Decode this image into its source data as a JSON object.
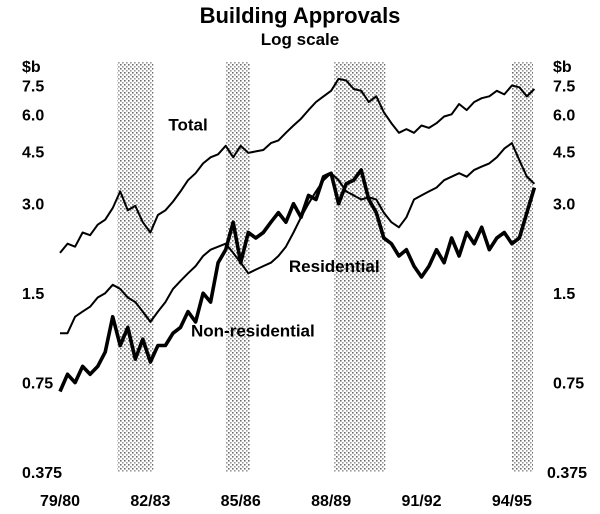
{
  "chart_data": {
    "type": "line",
    "title": "Building Approvals",
    "subtitle": "Log scale",
    "y_unit_left": "$b",
    "y_unit_right": "$b",
    "y_scale": "log",
    "ylim": [
      0.375,
      9.0
    ],
    "y_ticks": [
      {
        "value": 0.375,
        "label": "0.375"
      },
      {
        "value": 0.75,
        "label": "0.75"
      },
      {
        "value": 1.5,
        "label": "1.5"
      },
      {
        "value": 3.0,
        "label": "3.0"
      },
      {
        "value": 4.5,
        "label": "4.5"
      },
      {
        "value": 6.0,
        "label": "6.0"
      },
      {
        "value": 7.5,
        "label": "7.5"
      }
    ],
    "xlim": [
      1979.5,
      1995.7
    ],
    "x_ticks": [
      {
        "value": 1979.5,
        "label": "79/80"
      },
      {
        "value": 1982.5,
        "label": "82/83"
      },
      {
        "value": 1985.5,
        "label": "85/86"
      },
      {
        "value": 1988.5,
        "label": "88/89"
      },
      {
        "value": 1991.5,
        "label": "91/92"
      },
      {
        "value": 1994.5,
        "label": "94/95"
      }
    ],
    "shaded_periods": [
      [
        1981.4,
        1982.6
      ],
      [
        1985.0,
        1985.8
      ],
      [
        1988.6,
        1990.3
      ],
      [
        1994.5,
        1995.2
      ]
    ],
    "series": [
      {
        "name": "Total",
        "style": "thin",
        "label_at": [
          1983.1,
          5.3
        ],
        "points": [
          [
            1979.5,
            2.05
          ],
          [
            1979.75,
            2.2
          ],
          [
            1980.0,
            2.15
          ],
          [
            1980.25,
            2.4
          ],
          [
            1980.5,
            2.35
          ],
          [
            1980.75,
            2.55
          ],
          [
            1981.0,
            2.65
          ],
          [
            1981.25,
            2.9
          ],
          [
            1981.5,
            3.3
          ],
          [
            1981.75,
            2.85
          ],
          [
            1982.0,
            2.95
          ],
          [
            1982.25,
            2.6
          ],
          [
            1982.5,
            2.4
          ],
          [
            1982.75,
            2.75
          ],
          [
            1983.0,
            2.85
          ],
          [
            1983.25,
            3.05
          ],
          [
            1983.5,
            3.3
          ],
          [
            1983.75,
            3.6
          ],
          [
            1984.0,
            3.8
          ],
          [
            1984.25,
            4.1
          ],
          [
            1984.5,
            4.3
          ],
          [
            1984.75,
            4.4
          ],
          [
            1985.0,
            4.7
          ],
          [
            1985.25,
            4.3
          ],
          [
            1985.5,
            4.7
          ],
          [
            1985.75,
            4.45
          ],
          [
            1986.0,
            4.5
          ],
          [
            1986.25,
            4.55
          ],
          [
            1986.5,
            4.8
          ],
          [
            1986.75,
            4.9
          ],
          [
            1987.0,
            5.2
          ],
          [
            1987.25,
            5.5
          ],
          [
            1987.5,
            5.8
          ],
          [
            1987.75,
            6.2
          ],
          [
            1988.0,
            6.6
          ],
          [
            1988.25,
            6.9
          ],
          [
            1988.5,
            7.2
          ],
          [
            1988.75,
            7.9
          ],
          [
            1989.0,
            7.8
          ],
          [
            1989.25,
            7.3
          ],
          [
            1989.5,
            7.2
          ],
          [
            1989.75,
            6.6
          ],
          [
            1990.0,
            6.9
          ],
          [
            1990.25,
            6.1
          ],
          [
            1990.5,
            5.6
          ],
          [
            1990.75,
            5.2
          ],
          [
            1991.0,
            5.35
          ],
          [
            1991.25,
            5.2
          ],
          [
            1991.5,
            5.5
          ],
          [
            1991.75,
            5.4
          ],
          [
            1992.0,
            5.6
          ],
          [
            1992.25,
            5.9
          ],
          [
            1992.5,
            6.0
          ],
          [
            1992.75,
            6.5
          ],
          [
            1993.0,
            6.2
          ],
          [
            1993.25,
            6.6
          ],
          [
            1993.5,
            6.8
          ],
          [
            1993.75,
            6.9
          ],
          [
            1994.0,
            7.2
          ],
          [
            1994.25,
            7.0
          ],
          [
            1994.5,
            7.5
          ],
          [
            1994.75,
            7.4
          ],
          [
            1995.0,
            6.9
          ],
          [
            1995.25,
            7.3
          ]
        ]
      },
      {
        "name": "Residential",
        "style": "thin",
        "label_at": [
          1987.1,
          1.77
        ],
        "points": [
          [
            1979.5,
            1.1
          ],
          [
            1979.75,
            1.1
          ],
          [
            1980.0,
            1.25
          ],
          [
            1980.25,
            1.3
          ],
          [
            1980.5,
            1.35
          ],
          [
            1980.75,
            1.45
          ],
          [
            1981.0,
            1.5
          ],
          [
            1981.25,
            1.6
          ],
          [
            1981.5,
            1.55
          ],
          [
            1981.75,
            1.45
          ],
          [
            1982.0,
            1.4
          ],
          [
            1982.25,
            1.3
          ],
          [
            1982.5,
            1.2
          ],
          [
            1982.75,
            1.3
          ],
          [
            1983.0,
            1.4
          ],
          [
            1983.25,
            1.55
          ],
          [
            1983.5,
            1.65
          ],
          [
            1983.75,
            1.75
          ],
          [
            1984.0,
            1.85
          ],
          [
            1984.25,
            2.0
          ],
          [
            1984.5,
            2.1
          ],
          [
            1984.75,
            2.15
          ],
          [
            1985.0,
            2.2
          ],
          [
            1985.25,
            2.05
          ],
          [
            1985.5,
            1.9
          ],
          [
            1985.75,
            1.75
          ],
          [
            1986.0,
            1.8
          ],
          [
            1986.25,
            1.85
          ],
          [
            1986.5,
            1.9
          ],
          [
            1986.75,
            2.0
          ],
          [
            1987.0,
            2.15
          ],
          [
            1987.25,
            2.4
          ],
          [
            1987.5,
            2.7
          ],
          [
            1987.75,
            3.0
          ],
          [
            1988.0,
            3.3
          ],
          [
            1988.25,
            3.6
          ],
          [
            1988.5,
            3.8
          ],
          [
            1988.75,
            3.6
          ],
          [
            1989.0,
            3.3
          ],
          [
            1989.25,
            3.2
          ],
          [
            1989.5,
            3.1
          ],
          [
            1989.75,
            3.15
          ],
          [
            1990.0,
            3.1
          ],
          [
            1990.25,
            2.8
          ],
          [
            1990.5,
            2.6
          ],
          [
            1990.75,
            2.5
          ],
          [
            1991.0,
            2.7
          ],
          [
            1991.25,
            3.1
          ],
          [
            1991.5,
            3.2
          ],
          [
            1991.75,
            3.3
          ],
          [
            1992.0,
            3.4
          ],
          [
            1992.25,
            3.6
          ],
          [
            1992.5,
            3.7
          ],
          [
            1992.75,
            3.8
          ],
          [
            1993.0,
            3.7
          ],
          [
            1993.25,
            3.9
          ],
          [
            1993.5,
            4.0
          ],
          [
            1993.75,
            4.1
          ],
          [
            1994.0,
            4.3
          ],
          [
            1994.25,
            4.6
          ],
          [
            1994.5,
            4.8
          ],
          [
            1994.75,
            4.2
          ],
          [
            1995.0,
            3.7
          ],
          [
            1995.25,
            3.5
          ]
        ]
      },
      {
        "name": "Non-residential",
        "style": "thick",
        "label_at": [
          1983.85,
          1.07
        ],
        "points": [
          [
            1979.5,
            0.7
          ],
          [
            1979.75,
            0.8
          ],
          [
            1980.0,
            0.75
          ],
          [
            1980.25,
            0.85
          ],
          [
            1980.5,
            0.8
          ],
          [
            1980.75,
            0.85
          ],
          [
            1981.0,
            0.95
          ],
          [
            1981.25,
            1.25
          ],
          [
            1981.5,
            1.0
          ],
          [
            1981.75,
            1.15
          ],
          [
            1982.0,
            0.9
          ],
          [
            1982.25,
            1.05
          ],
          [
            1982.5,
            0.88
          ],
          [
            1982.75,
            1.0
          ],
          [
            1983.0,
            1.0
          ],
          [
            1983.25,
            1.1
          ],
          [
            1983.5,
            1.15
          ],
          [
            1983.75,
            1.3
          ],
          [
            1984.0,
            1.2
          ],
          [
            1984.25,
            1.5
          ],
          [
            1984.5,
            1.4
          ],
          [
            1984.75,
            1.9
          ],
          [
            1985.0,
            2.1
          ],
          [
            1985.25,
            2.6
          ],
          [
            1985.5,
            1.9
          ],
          [
            1985.75,
            2.4
          ],
          [
            1986.0,
            2.3
          ],
          [
            1986.25,
            2.4
          ],
          [
            1986.5,
            2.6
          ],
          [
            1986.75,
            2.8
          ],
          [
            1987.0,
            2.6
          ],
          [
            1987.25,
            3.0
          ],
          [
            1987.5,
            2.7
          ],
          [
            1987.75,
            3.2
          ],
          [
            1988.0,
            3.1
          ],
          [
            1988.25,
            3.7
          ],
          [
            1988.5,
            3.8
          ],
          [
            1988.75,
            3.0
          ],
          [
            1989.0,
            3.5
          ],
          [
            1989.25,
            3.6
          ],
          [
            1989.5,
            3.9
          ],
          [
            1989.75,
            3.1
          ],
          [
            1990.0,
            2.8
          ],
          [
            1990.25,
            2.3
          ],
          [
            1990.5,
            2.2
          ],
          [
            1990.75,
            2.0
          ],
          [
            1991.0,
            2.1
          ],
          [
            1991.25,
            1.85
          ],
          [
            1991.5,
            1.7
          ],
          [
            1991.75,
            1.85
          ],
          [
            1992.0,
            2.1
          ],
          [
            1992.25,
            1.9
          ],
          [
            1992.5,
            2.3
          ],
          [
            1992.75,
            2.0
          ],
          [
            1993.0,
            2.4
          ],
          [
            1993.25,
            2.2
          ],
          [
            1993.5,
            2.5
          ],
          [
            1993.75,
            2.1
          ],
          [
            1994.0,
            2.3
          ],
          [
            1994.25,
            2.4
          ],
          [
            1994.5,
            2.2
          ],
          [
            1994.75,
            2.3
          ],
          [
            1995.0,
            2.8
          ],
          [
            1995.25,
            3.4
          ]
        ]
      }
    ]
  }
}
